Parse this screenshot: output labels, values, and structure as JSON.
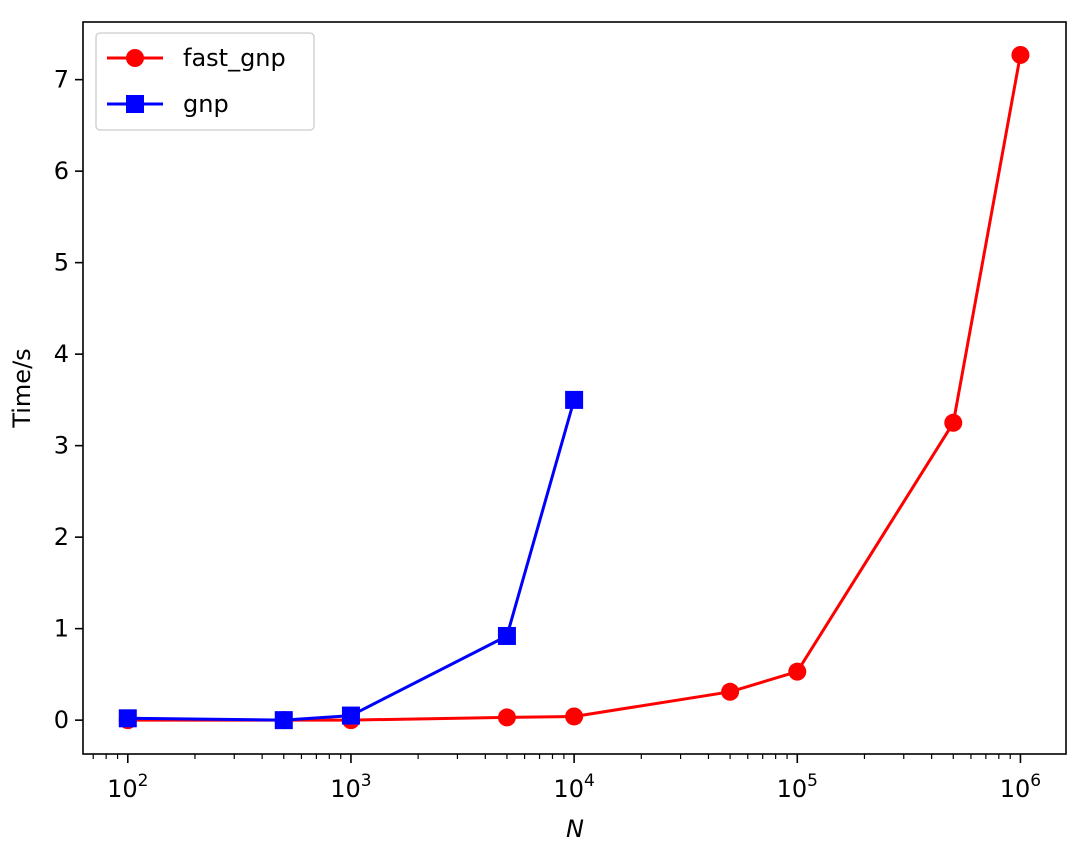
{
  "chart_data": {
    "type": "line",
    "title": "",
    "xlabel": "N",
    "ylabel": "Time/s",
    "xscale": "log",
    "xlim": [
      63,
      1600000
    ],
    "ylim": [
      -0.37,
      7.63
    ],
    "grid": false,
    "legend_position": "top-left",
    "x_ticks": [
      {
        "value": 100,
        "base": "10",
        "exp": "2"
      },
      {
        "value": 1000,
        "base": "10",
        "exp": "3"
      },
      {
        "value": 10000,
        "base": "10",
        "exp": "4"
      },
      {
        "value": 100000,
        "base": "10",
        "exp": "5"
      },
      {
        "value": 1000000,
        "base": "10",
        "exp": "6"
      }
    ],
    "y_ticks": [
      {
        "value": 0,
        "label": "0"
      },
      {
        "value": 1,
        "label": "1"
      },
      {
        "value": 2,
        "label": "2"
      },
      {
        "value": 3,
        "label": "3"
      },
      {
        "value": 4,
        "label": "4"
      },
      {
        "value": 5,
        "label": "5"
      },
      {
        "value": 6,
        "label": "6"
      },
      {
        "value": 7,
        "label": "7"
      }
    ],
    "series": [
      {
        "name": "fast_gnp",
        "color": "#ff0000",
        "marker": "circle",
        "x": [
          100,
          500,
          1000,
          5000,
          10000,
          50000,
          100000,
          500000,
          1000000
        ],
        "y": [
          0.0,
          0.0,
          0.0,
          0.03,
          0.04,
          0.31,
          0.53,
          3.25,
          7.27
        ]
      },
      {
        "name": "gnp",
        "color": "#0000ff",
        "marker": "square",
        "x": [
          100,
          500,
          1000,
          5000,
          10000
        ],
        "y": [
          0.02,
          0.0,
          0.05,
          0.92,
          3.5
        ]
      }
    ]
  }
}
